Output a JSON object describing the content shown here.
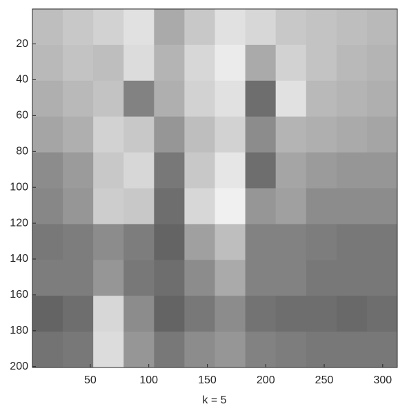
{
  "chart_data": {
    "type": "image",
    "xlabel": "k = 5",
    "xlim": [
      0.5,
      312.5
    ],
    "ylim": [
      0.5,
      200.5
    ],
    "y_reversed": true,
    "xticks": [
      50,
      100,
      150,
      200,
      250,
      300
    ],
    "yticks": [
      20,
      40,
      60,
      80,
      100,
      120,
      140,
      160,
      180,
      200
    ],
    "colormap": "gray",
    "values": [
      [
        190,
        200,
        210,
        225,
        170,
        200,
        225,
        215,
        200,
        195,
        190,
        185
      ],
      [
        185,
        195,
        190,
        220,
        180,
        215,
        235,
        170,
        210,
        195,
        185,
        180
      ],
      [
        175,
        185,
        195,
        130,
        175,
        210,
        225,
        110,
        225,
        185,
        180,
        175
      ],
      [
        165,
        175,
        210,
        200,
        150,
        190,
        210,
        140,
        180,
        175,
        170,
        165
      ],
      [
        140,
        155,
        200,
        215,
        120,
        200,
        230,
        110,
        165,
        155,
        150,
        150
      ],
      [
        135,
        150,
        205,
        200,
        110,
        215,
        240,
        150,
        160,
        140,
        140,
        140
      ],
      [
        120,
        125,
        140,
        125,
        100,
        160,
        190,
        130,
        130,
        125,
        120,
        120
      ],
      [
        125,
        125,
        150,
        120,
        110,
        140,
        170,
        130,
        130,
        120,
        120,
        120
      ],
      [
        100,
        110,
        215,
        140,
        100,
        120,
        140,
        115,
        110,
        110,
        105,
        110
      ],
      [
        115,
        120,
        220,
        150,
        120,
        140,
        150,
        130,
        125,
        120,
        120,
        120
      ]
    ]
  }
}
